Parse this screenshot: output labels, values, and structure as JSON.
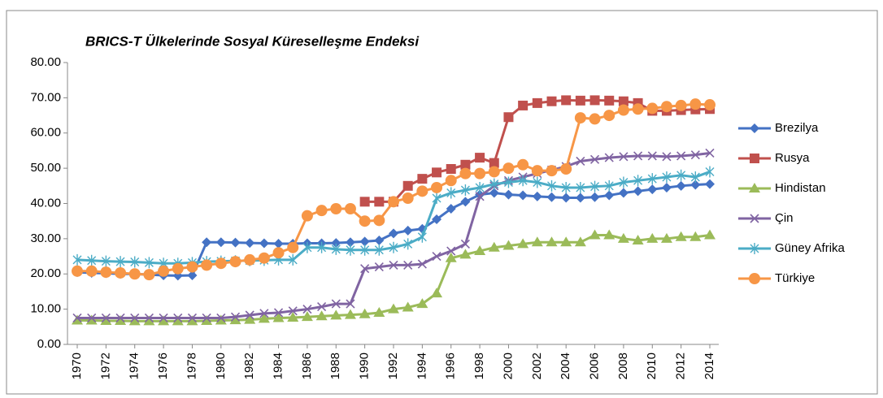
{
  "chart_data": {
    "type": "line",
    "title": "BRICS-T Ülkelerinde Sosyal Küreselleşme Endeksi",
    "categories": [
      "1970",
      null,
      "1972",
      null,
      "1974",
      null,
      "1976",
      null,
      "1978",
      null,
      "1980",
      null,
      "1982",
      null,
      "1984",
      null,
      "1986",
      null,
      "1988",
      null,
      "1990",
      null,
      "1992",
      null,
      "1994",
      null,
      "1996",
      null,
      "1998",
      null,
      "2000",
      null,
      "2002",
      null,
      "2004",
      null,
      "2006",
      null,
      "2008",
      null,
      "2010",
      null,
      "2012",
      null,
      "2014"
    ],
    "ylim": [
      0,
      80
    ],
    "yticks": [
      {
        "value": 0,
        "label": "0.00"
      },
      {
        "value": 10,
        "label": "10.00"
      },
      {
        "value": 20,
        "label": "20.00"
      },
      {
        "value": 30,
        "label": "30.00"
      },
      {
        "value": 40,
        "label": "40.00"
      },
      {
        "value": 50,
        "label": "50.00"
      },
      {
        "value": 60,
        "label": "60.00"
      },
      {
        "value": 70,
        "label": "70.00"
      },
      {
        "value": 80,
        "label": "80.00"
      }
    ],
    "grid": false,
    "legend": "right",
    "series": [
      {
        "name": "Brezilya",
        "color": "#4472c4",
        "marker": "diamond",
        "values": [
          20.5,
          20.3,
          20.2,
          20,
          20,
          19.8,
          19.6,
          19.5,
          19.6,
          29,
          29,
          28.9,
          28.8,
          28.7,
          28.6,
          28.6,
          28.7,
          28.7,
          28.8,
          29,
          29.2,
          29.5,
          31.5,
          32.3,
          32.8,
          35.5,
          38.5,
          40.5,
          42.5,
          43,
          42.5,
          42.3,
          42,
          41.8,
          41.6,
          41.6,
          41.8,
          42.3,
          43,
          43.5,
          44,
          44.5,
          45,
          45.3,
          45.5
        ]
      },
      {
        "name": "Rusya",
        "color": "#c0504d",
        "marker": "square",
        "values": [
          null,
          null,
          null,
          null,
          null,
          null,
          null,
          null,
          null,
          null,
          null,
          null,
          null,
          null,
          null,
          null,
          null,
          null,
          null,
          null,
          40.5,
          40.5,
          40.5,
          45,
          47,
          48.8,
          49.8,
          51,
          53,
          51.5,
          64.5,
          67.8,
          68.5,
          69,
          69.3,
          69.2,
          69.3,
          69.2,
          69,
          68.5,
          66.3,
          66.3,
          66.5,
          66.7,
          66.8
        ]
      },
      {
        "name": "Hindistan",
        "color": "#9bbb59",
        "marker": "triangle",
        "values": [
          6.8,
          6.8,
          6.7,
          6.7,
          6.6,
          6.6,
          6.6,
          6.6,
          6.6,
          6.7,
          6.8,
          6.9,
          7,
          7.3,
          7.5,
          7.6,
          7.8,
          8,
          8.2,
          8.4,
          8.6,
          9,
          10,
          10.5,
          11.5,
          14.5,
          24.5,
          25.5,
          26.5,
          27.5,
          28,
          28.5,
          29,
          29,
          29,
          29,
          31,
          31,
          30,
          29.5,
          30,
          30,
          30.5,
          30.5,
          31
        ]
      },
      {
        "name": "Çin",
        "color": "#8064a2",
        "marker": "x",
        "values": [
          7.5,
          7.5,
          7.5,
          7.5,
          7.5,
          7.5,
          7.5,
          7.5,
          7.5,
          7.5,
          7.5,
          7.8,
          8.3,
          8.8,
          9,
          9.5,
          10,
          10.7,
          11.5,
          11.5,
          21.5,
          22,
          22.5,
          22.5,
          22.8,
          25,
          26.5,
          28.5,
          42,
          45,
          46.5,
          47.5,
          48.5,
          49.5,
          50.5,
          52,
          52.5,
          53,
          53.3,
          53.5,
          53.5,
          53.3,
          53.5,
          53.8,
          54.3
        ]
      },
      {
        "name": "Güney Afrika",
        "color": "#4bacc6",
        "marker": "asterisk",
        "values": [
          24,
          23.8,
          23.6,
          23.5,
          23.4,
          23.2,
          23,
          23,
          23.2,
          23.5,
          23.6,
          23.7,
          23.8,
          23.9,
          24,
          24,
          27.5,
          27.5,
          27,
          26.8,
          26.8,
          26.8,
          27.5,
          28.5,
          30.5,
          41.5,
          43,
          43.8,
          44.5,
          45.5,
          46,
          46.5,
          46,
          45,
          44.5,
          44.5,
          44.8,
          45,
          46,
          46.5,
          47,
          47.5,
          48,
          47.5,
          49
        ]
      },
      {
        "name": "Türkiye",
        "color": "#f79646",
        "marker": "circle",
        "values": [
          20.8,
          20.8,
          20.5,
          20.3,
          20,
          19.8,
          20.8,
          21.5,
          22,
          22.5,
          23,
          23.5,
          24,
          24.5,
          26,
          27.5,
          36.5,
          38,
          38.5,
          38.5,
          35,
          35.2,
          40.5,
          41.5,
          43.5,
          44.5,
          46.5,
          48.5,
          48.5,
          49,
          50,
          51,
          49.3,
          49.3,
          49.8,
          64.3,
          64,
          65,
          66.5,
          66.8,
          67,
          67.5,
          67.8,
          68.2,
          68
        ]
      }
    ]
  }
}
